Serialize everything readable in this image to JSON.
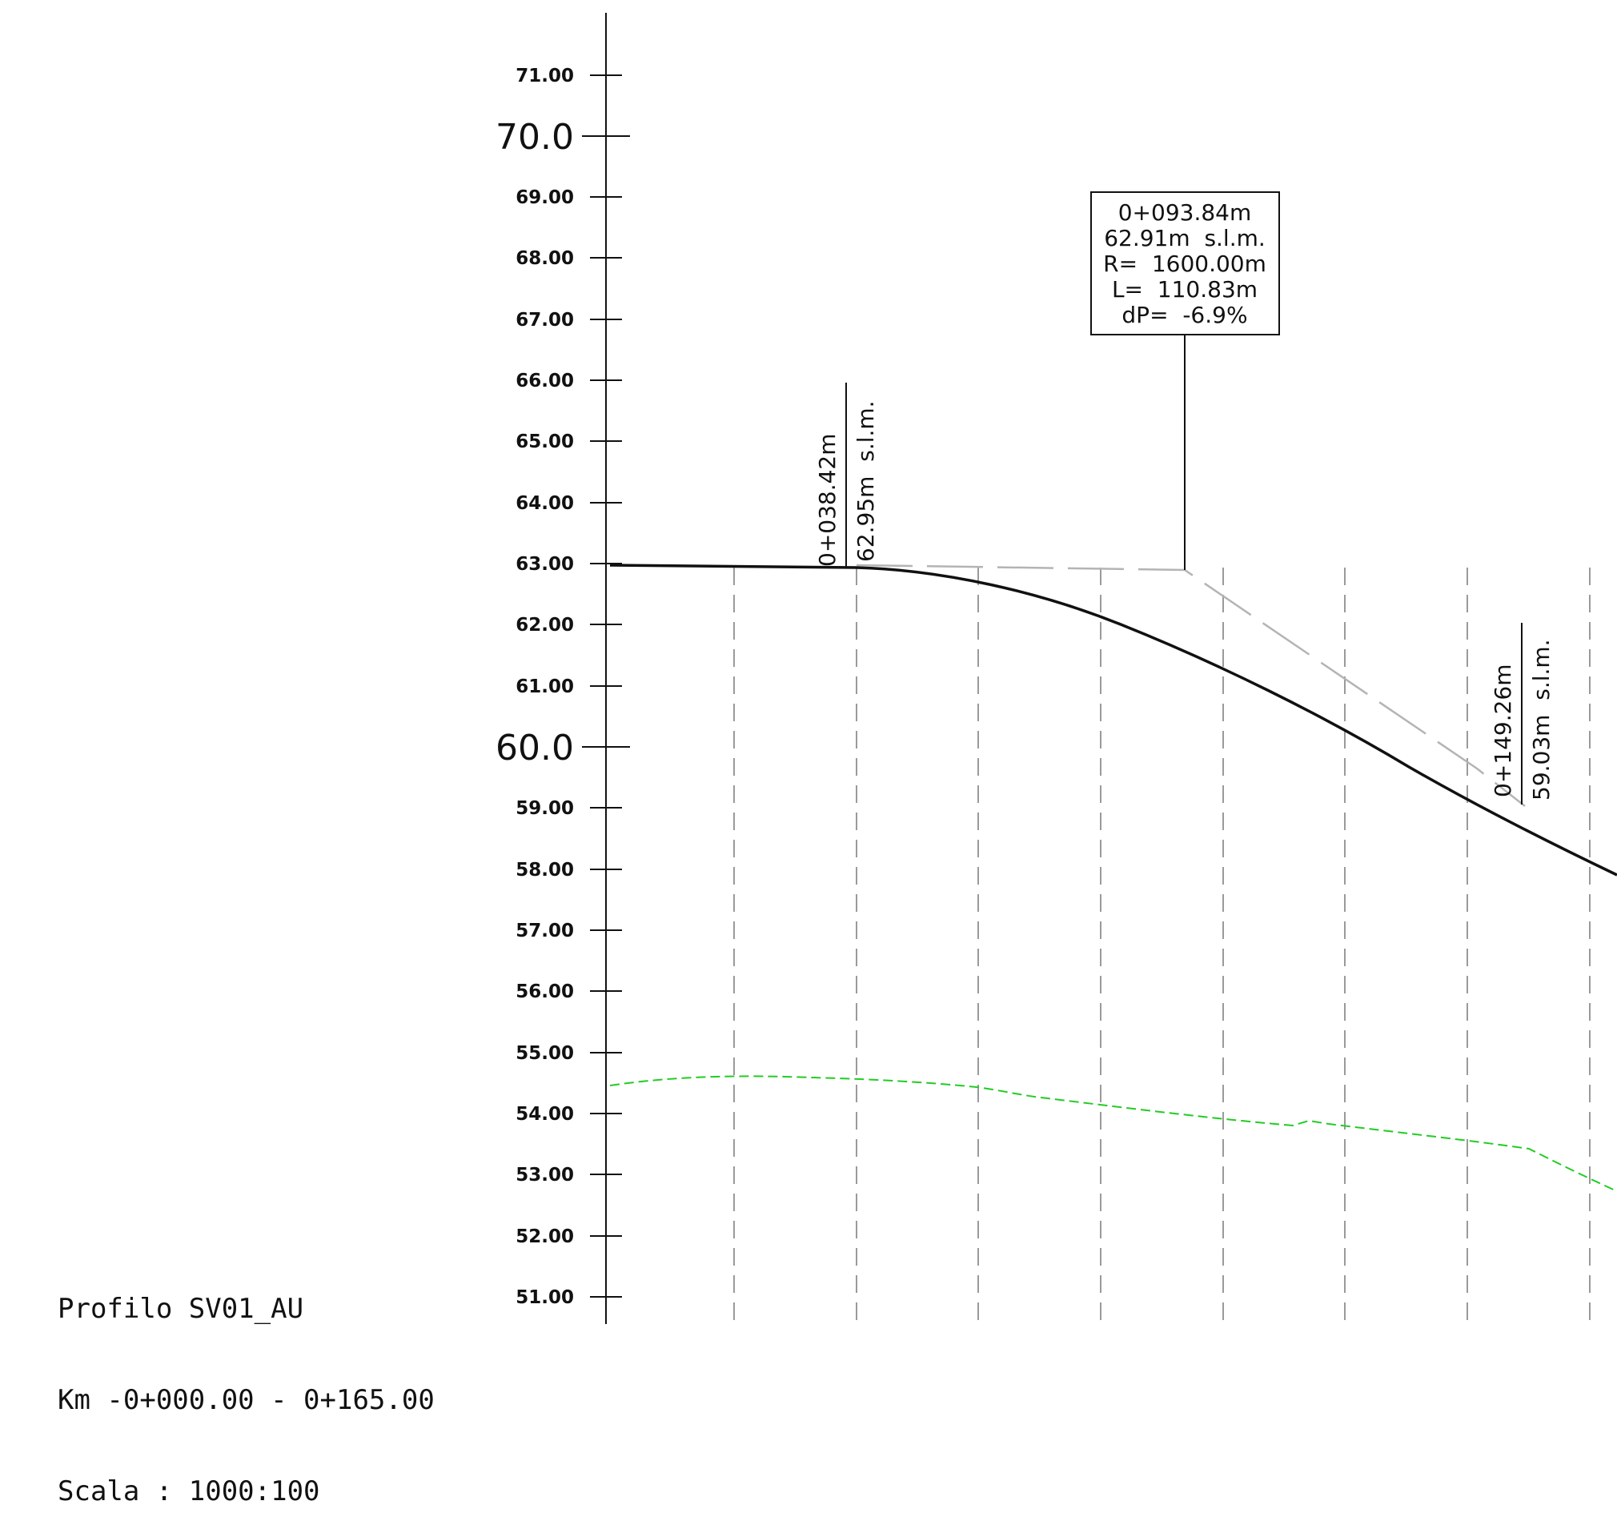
{
  "title_block": {
    "line1": "Profilo SV01_AU",
    "line2": "Km -0+000.00 - 0+165.00",
    "line3": "Scala : 1000:100"
  },
  "axis": {
    "ticks": [
      "71.00",
      "70.0",
      "69.00",
      "68.00",
      "67.00",
      "66.00",
      "65.00",
      "64.00",
      "63.00",
      "62.00",
      "61.00",
      "60.0",
      "59.00",
      "58.00",
      "57.00",
      "56.00",
      "55.00",
      "54.00",
      "53.00",
      "52.00",
      "51.00"
    ],
    "major_ticks": [
      "70.0",
      "60.0"
    ]
  },
  "vertical_curve": {
    "station": "0+093.84m",
    "elevation": "62.91m  s.l.m.",
    "radius": "R=  1600.00m",
    "length": "L=  110.83m",
    "grade_change": "dP=  -6.9%"
  },
  "tangent_points": [
    {
      "station": "0+038.42m",
      "elevation": "62.95m  s.l.m."
    },
    {
      "station": "0+149.26m",
      "elevation": "59.03m  s.l.m."
    }
  ],
  "colors": {
    "line": "#111111",
    "tangent": "#b4b4b4",
    "grid": "#9a9a9a",
    "terrain": "#22cc22"
  }
}
